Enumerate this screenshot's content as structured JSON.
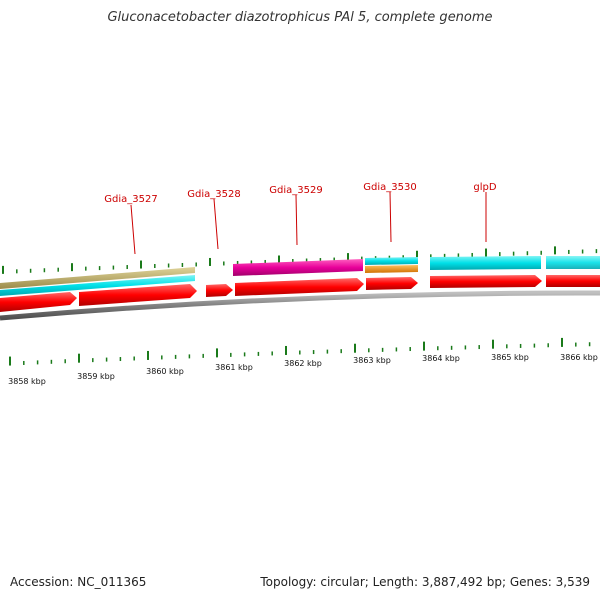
{
  "title": "Gluconacetobacter diazotrophicus PAl 5, complete genome",
  "footer": {
    "accession": "Accession: NC_011365",
    "summary": "Topology: circular; Length: 3,887,492 bp; Genes: 3,539"
  },
  "colors": {
    "cds": "#ff0000",
    "rna_teal": "#00c8c8",
    "pink": "#e8009a",
    "tan": "#bfb06a",
    "orange": "#ff9a00",
    "backbone": "#808080",
    "tick": "#1a7a1a",
    "gene_label": "#cc0000"
  },
  "gene_labels": [
    "Gdia_3527",
    "Gdia_3528",
    "Gdia_3529",
    "Gdia_3530",
    "glpD"
  ],
  "scale_labels": [
    "3858 kbp",
    "3859 kbp",
    "3860 kbp",
    "3861 kbp",
    "3862 kbp",
    "3863 kbp",
    "3864 kbp",
    "3865 kbp",
    "3866 kbp"
  ]
}
